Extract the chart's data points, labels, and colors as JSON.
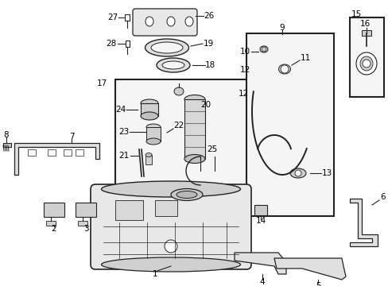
{
  "bg_color": "#ffffff",
  "fig_width": 4.89,
  "fig_height": 3.6,
  "dpi": 100,
  "label_fontsize": 7.5,
  "line_color": "#222222",
  "part_color": "#e8e8e8",
  "box_bg": "#f0f0f0"
}
